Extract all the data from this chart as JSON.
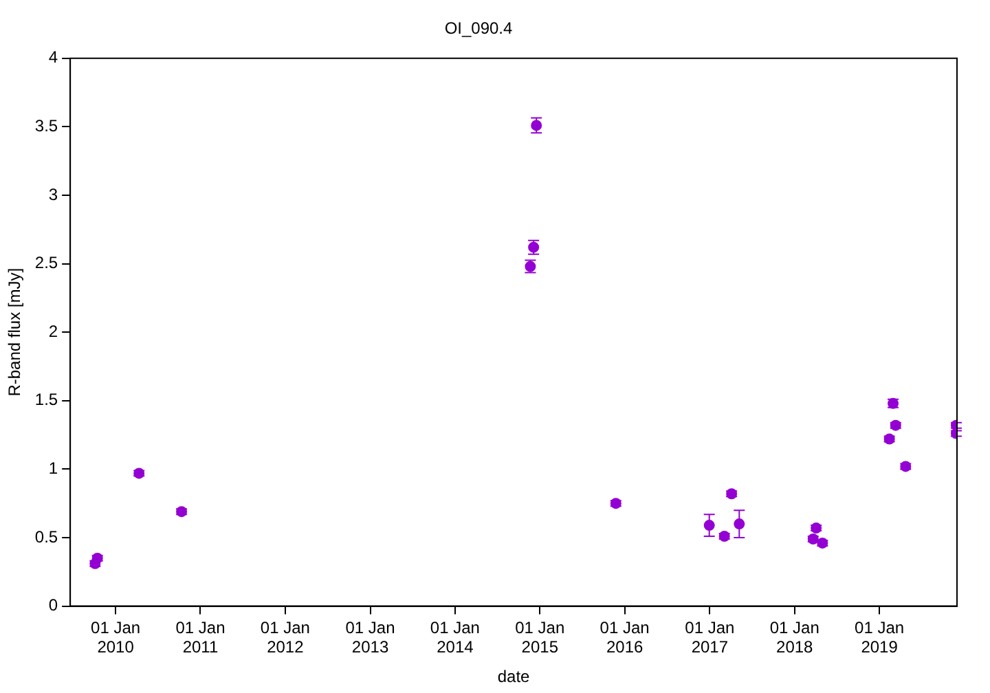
{
  "chart_data": {
    "type": "scatter",
    "title": "OI_090.4",
    "xlabel": "date",
    "ylabel": "R-band flux [mJy]",
    "x": [
      "2009-10-05",
      "2009-10-15",
      "2010-04-12",
      "2010-10-12",
      "2014-11-21",
      "2014-12-05",
      "2014-12-17",
      "2015-11-24",
      "2016-12-30",
      "2017-03-05",
      "2017-04-05",
      "2017-05-08",
      "2018-03-22",
      "2018-04-04",
      "2018-05-01",
      "2019-02-13",
      "2019-03-01",
      "2019-03-12",
      "2019-04-24",
      "2019-11-28",
      "2019-11-28"
    ],
    "series": [
      {
        "color": "#9400d3",
        "values": [
          0.31,
          0.35,
          0.97,
          0.69,
          2.48,
          2.62,
          3.51,
          0.75,
          0.59,
          0.51,
          0.82,
          0.6,
          0.49,
          0.57,
          0.46,
          1.22,
          1.48,
          1.32,
          1.02,
          1.32,
          1.26
        ],
        "errors": [
          0.02,
          0.02,
          0.02,
          0.02,
          0.045,
          0.05,
          0.055,
          0.02,
          0.08,
          0.02,
          0.02,
          0.1,
          0.02,
          0.02,
          0.02,
          0.02,
          0.03,
          0.02,
          0.02,
          0.02,
          0.02
        ]
      }
    ],
    "xlim": [
      "2009-06-20",
      "2019-12-01"
    ],
    "xticks": [
      {
        "value": "2010-01-01",
        "label": "01 Jan\n2010"
      },
      {
        "value": "2011-01-01",
        "label": "01 Jan\n2011"
      },
      {
        "value": "2012-01-01",
        "label": "01 Jan\n2012"
      },
      {
        "value": "2013-01-01",
        "label": "01 Jan\n2013"
      },
      {
        "value": "2014-01-01",
        "label": "01 Jan\n2014"
      },
      {
        "value": "2015-01-01",
        "label": "01 Jan\n2015"
      },
      {
        "value": "2016-01-01",
        "label": "01 Jan\n2016"
      },
      {
        "value": "2017-01-01",
        "label": "01 Jan\n2017"
      },
      {
        "value": "2018-01-01",
        "label": "01 Jan\n2018"
      },
      {
        "value": "2019-01-01",
        "label": "01 Jan\n2019"
      }
    ],
    "ylim": [
      0,
      4
    ],
    "yticks": [
      0,
      0.5,
      1,
      1.5,
      2,
      2.5,
      3,
      3.5,
      4
    ],
    "grid": false,
    "legend": false,
    "marker": "circle"
  }
}
